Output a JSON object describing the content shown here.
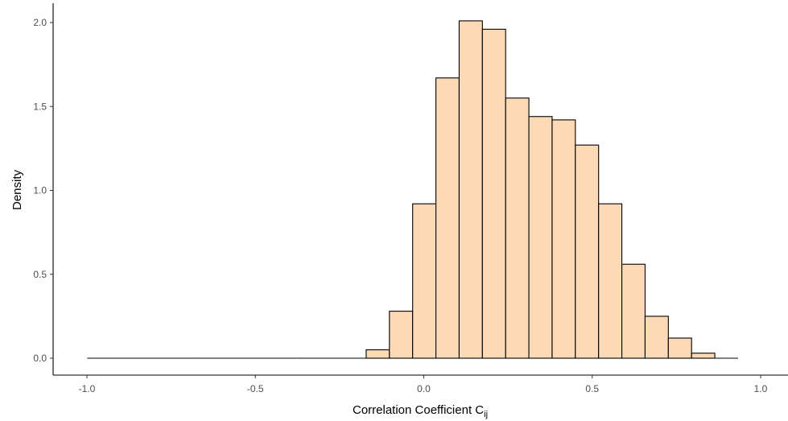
{
  "chart_data": {
    "type": "bar",
    "subtype": "histogram",
    "xlabel": "Correlation Coefficient C",
    "xlabel_subscript": "ij",
    "ylabel": "Density",
    "xlim": [
      -1.05,
      1.0
    ],
    "ylim": [
      0,
      2.1
    ],
    "x_ticks": [
      -1.0,
      -0.5,
      0.0,
      0.5,
      1.0
    ],
    "x_tick_labels": [
      "-1.0",
      "-0.5",
      "0.0",
      "0.5",
      "1.0"
    ],
    "y_ticks": [
      0.0,
      0.5,
      1.0,
      1.5,
      2.0
    ],
    "y_tick_labels": [
      "0.0",
      "0.5",
      "1.0",
      "1.5",
      "2.0"
    ],
    "bin_width": 0.069,
    "bin_starts": [
      -0.999,
      -0.93,
      -0.861,
      -0.792,
      -0.723,
      -0.654,
      -0.585,
      -0.516,
      -0.447,
      -0.378,
      -0.309,
      -0.24,
      -0.171,
      -0.102,
      -0.033,
      0.036,
      0.105,
      0.174,
      0.243,
      0.312,
      0.381,
      0.45,
      0.519,
      0.588,
      0.657,
      0.726,
      0.795,
      0.864
    ],
    "values": [
      0,
      0,
      0,
      0,
      0,
      0,
      0,
      0,
      0,
      0,
      0,
      0,
      0.05,
      0.28,
      0.92,
      1.67,
      2.01,
      1.96,
      1.55,
      1.44,
      1.42,
      1.27,
      0.92,
      0.56,
      0.25,
      0.12,
      0.03,
      0
    ],
    "grid": false,
    "legend": "none",
    "colors": {
      "fill": "#fdd9b5",
      "stroke": "#000000",
      "axis": "#000000",
      "tick_text": "#4d4d4d"
    }
  }
}
